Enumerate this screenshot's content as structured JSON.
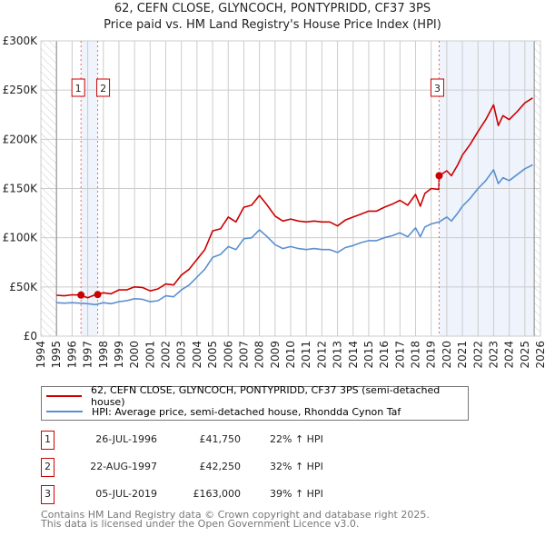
{
  "title": "62, CEFN CLOSE, GLYNCOCH, PONTYPRIDD, CF37 3PS",
  "subtitle": "Price paid vs. HM Land Registry's House Price Index (HPI)",
  "colors": {
    "property": "#cc0000",
    "hpi": "#5b8fd0",
    "grid": "#cccccc",
    "shade": "#eef3fc"
  },
  "chart_data": {
    "type": "line",
    "title": "62, CEFN CLOSE, GLYNCOCH, PONTYPRIDD, CF37 3PS — Price paid vs. HM Land Registry's House Price Index (HPI)",
    "xlim": [
      1994,
      2026
    ],
    "ylim": [
      0,
      300000
    ],
    "x_ticks": [
      "1994",
      "1995",
      "1996",
      "1997",
      "1998",
      "1999",
      "2000",
      "2001",
      "2002",
      "2003",
      "2004",
      "2005",
      "2006",
      "2007",
      "2008",
      "2009",
      "2010",
      "2011",
      "2012",
      "2013",
      "2014",
      "2015",
      "2016",
      "2017",
      "2018",
      "2019",
      "2020",
      "2021",
      "2022",
      "2023",
      "2024",
      "2025",
      "2026"
    ],
    "y_ticks": [
      {
        "v": 0,
        "label": "£0"
      },
      {
        "v": 50000,
        "label": "£50K"
      },
      {
        "v": 100000,
        "label": "£100K"
      },
      {
        "v": 150000,
        "label": "£150K"
      },
      {
        "v": 200000,
        "label": "£200K"
      },
      {
        "v": 250000,
        "label": "£250K"
      },
      {
        "v": 300000,
        "label": "£300K"
      }
    ],
    "grid": true,
    "series": [
      {
        "name": "62, CEFN CLOSE, GLYNCOCH, PONTYPRIDD, CF37 3PS (semi-detached house)",
        "color": "#cc0000",
        "x": [
          1995,
          1995.5,
          1996,
          1996.5,
          1997,
          1997.5,
          1998,
          1998.5,
          1999,
          1999.5,
          2000,
          2000.5,
          2001,
          2001.5,
          2002,
          2002.5,
          2003,
          2003.5,
          2004,
          2004.5,
          2005,
          2005.5,
          2006,
          2006.5,
          2007,
          2007.5,
          2008,
          2008.5,
          2009,
          2009.5,
          2010,
          2010.5,
          2011,
          2011.5,
          2012,
          2012.5,
          2013,
          2013.5,
          2014,
          2014.5,
          2015,
          2015.5,
          2016,
          2016.5,
          2017,
          2017.5,
          2018,
          2018.3,
          2018.6,
          2019,
          2019.49,
          2019.51,
          2020,
          2020.3,
          2020.7,
          2021,
          2021.5,
          2022,
          2022.5,
          2023,
          2023.3,
          2023.6,
          2024,
          2024.5,
          2025,
          2025.5
        ],
        "y": [
          41500,
          41000,
          42000,
          41700,
          39000,
          42200,
          44000,
          43000,
          47000,
          47000,
          50000,
          49500,
          46000,
          48000,
          53000,
          52000,
          62000,
          68000,
          78000,
          88000,
          107000,
          109000,
          121000,
          116000,
          131000,
          133000,
          143000,
          133000,
          122000,
          117000,
          119000,
          117000,
          116000,
          117000,
          116000,
          116000,
          112000,
          118000,
          121000,
          124000,
          127000,
          127000,
          131000,
          134000,
          138000,
          133000,
          144000,
          132000,
          145000,
          150000,
          149000,
          163000,
          168000,
          163000,
          174000,
          184000,
          195000,
          208000,
          220000,
          235000,
          214000,
          224000,
          220000,
          228000,
          237000,
          242000
        ]
      },
      {
        "name": "HPI: Average price, semi-detached house, Rhondda Cynon Taf",
        "color": "#5b8fd0",
        "x": [
          1995,
          1995.5,
          1996,
          1996.5,
          1997,
          1997.5,
          1998,
          1998.5,
          1999,
          1999.5,
          2000,
          2000.5,
          2001,
          2001.5,
          2002,
          2002.5,
          2003,
          2003.5,
          2004,
          2004.5,
          2005,
          2005.5,
          2006,
          2006.5,
          2007,
          2007.5,
          2008,
          2008.5,
          2009,
          2009.5,
          2010,
          2010.5,
          2011,
          2011.5,
          2012,
          2012.5,
          2013,
          2013.5,
          2014,
          2014.5,
          2015,
          2015.5,
          2016,
          2016.5,
          2017,
          2017.5,
          2018,
          2018.3,
          2018.6,
          2019,
          2019.5,
          2020,
          2020.3,
          2020.7,
          2021,
          2021.5,
          2022,
          2022.5,
          2023,
          2023.3,
          2023.6,
          2024,
          2024.5,
          2025,
          2025.5
        ],
        "y": [
          34000,
          33500,
          34000,
          33500,
          33000,
          32000,
          34000,
          33000,
          35000,
          36000,
          38000,
          37500,
          35000,
          36000,
          41000,
          40000,
          47000,
          52000,
          60000,
          68000,
          80000,
          83000,
          91000,
          88000,
          99000,
          100000,
          108000,
          101000,
          93000,
          89000,
          91000,
          89000,
          88000,
          89000,
          88000,
          88000,
          85000,
          90000,
          92000,
          95000,
          97000,
          97000,
          100000,
          102000,
          105000,
          101000,
          110000,
          101000,
          111000,
          114000,
          116000,
          121000,
          117000,
          125000,
          132000,
          140000,
          150000,
          158000,
          169000,
          155000,
          161000,
          158000,
          164000,
          170000,
          174000
        ]
      }
    ],
    "sales": [
      {
        "label": "1",
        "x": 1996.57,
        "y": 41750
      },
      {
        "label": "2",
        "x": 1997.64,
        "y": 42250
      },
      {
        "label": "3",
        "x": 2019.51,
        "y": 163000
      }
    ],
    "shaded_ranges": [
      [
        1996.57,
        1997.64
      ],
      [
        2019.51,
        2025.6
      ]
    ],
    "hatched_ranges": [
      [
        1994,
        1995
      ],
      [
        2025.6,
        2026
      ]
    ],
    "legend_placement": "below"
  },
  "legend": {
    "property": "62, CEFN CLOSE, GLYNCOCH, PONTYPRIDD, CF37 3PS (semi-detached house)",
    "hpi": "HPI: Average price, semi-detached house, Rhondda Cynon Taf"
  },
  "transactions": [
    {
      "num": "1",
      "date": "26-JUL-1996",
      "price": "£41,750",
      "hpi": "22% ↑ HPI"
    },
    {
      "num": "2",
      "date": "22-AUG-1997",
      "price": "£42,250",
      "hpi": "32% ↑ HPI"
    },
    {
      "num": "3",
      "date": "05-JUL-2019",
      "price": "£163,000",
      "hpi": "39% ↑ HPI"
    }
  ],
  "footer": {
    "line1": "Contains HM Land Registry data © Crown copyright and database right 2025.",
    "line2": "This data is licensed under the Open Government Licence v3.0."
  }
}
